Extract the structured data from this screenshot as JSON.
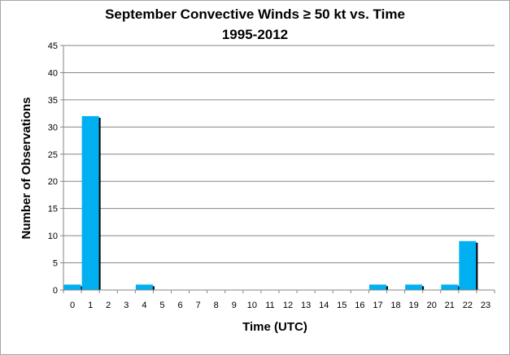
{
  "chart_data": {
    "type": "bar",
    "title_line1": "September Convective Winds ≥ 50 kt vs. Time",
    "title_line2": "1995-2012",
    "xlabel": "Time (UTC)",
    "ylabel": "Number of Observations",
    "ylim": [
      0,
      45
    ],
    "yticks": [
      0,
      5,
      10,
      15,
      20,
      25,
      30,
      35,
      40,
      45
    ],
    "grid": true,
    "legend": "none",
    "categories": [
      "0",
      "1",
      "2",
      "3",
      "4",
      "5",
      "6",
      "7",
      "8",
      "9",
      "10",
      "11",
      "12",
      "13",
      "14",
      "15",
      "16",
      "17",
      "18",
      "19",
      "20",
      "21",
      "22",
      "23"
    ],
    "values": [
      1,
      32,
      0,
      0,
      1,
      0,
      0,
      0,
      0,
      0,
      0,
      0,
      0,
      0,
      0,
      0,
      0,
      1,
      0,
      1,
      0,
      1,
      9,
      0
    ],
    "colors": {
      "bar": "#00b0f0",
      "shadow": "#000000",
      "grid": "#868686",
      "axis": "#868686"
    }
  }
}
